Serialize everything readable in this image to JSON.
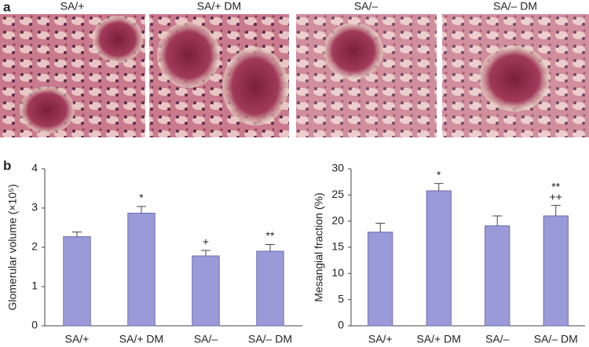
{
  "panel_a": {
    "label": "a",
    "images": [
      "SA/+",
      "SA/+ DM",
      "SA/–",
      "SA/– DM"
    ]
  },
  "panel_b_label": "b",
  "chart_data": [
    {
      "type": "bar",
      "ylabel": "Glomerular volume (×10⁵)",
      "categories": [
        "SA/+",
        "SA/+ DM",
        "SA/–",
        "SA/– DM"
      ],
      "series": [
        {
          "color": "#9a9ad8",
          "values": [
            2.27,
            2.87,
            1.78,
            1.9
          ],
          "errors": [
            0.12,
            0.17,
            0.14,
            0.17
          ]
        }
      ],
      "annotations": [
        {
          "category": "SA/+ DM",
          "lines": [
            "*"
          ]
        },
        {
          "category": "SA/–",
          "lines": [
            "+"
          ]
        },
        {
          "category": "SA/– DM",
          "lines": [
            "**"
          ]
        }
      ],
      "ylim": [
        0,
        4
      ],
      "yticks": [
        0,
        1,
        2,
        3,
        4
      ]
    },
    {
      "type": "bar",
      "ylabel": "Mesangial fraction (%)",
      "categories": [
        "SA/+",
        "SA/+ DM",
        "SA/–",
        "SA/– DM"
      ],
      "series": [
        {
          "color": "#9a9ad8",
          "values": [
            17.9,
            25.8,
            19.1,
            21.0
          ],
          "errors": [
            1.7,
            1.4,
            1.9,
            2.0
          ]
        }
      ],
      "annotations": [
        {
          "category": "SA/+ DM",
          "lines": [
            "*"
          ]
        },
        {
          "category": "SA/– DM",
          "lines": [
            "**",
            "++"
          ]
        }
      ],
      "ylim": [
        0,
        30
      ],
      "yticks": [
        0,
        5,
        10,
        15,
        20,
        25,
        30
      ]
    }
  ]
}
